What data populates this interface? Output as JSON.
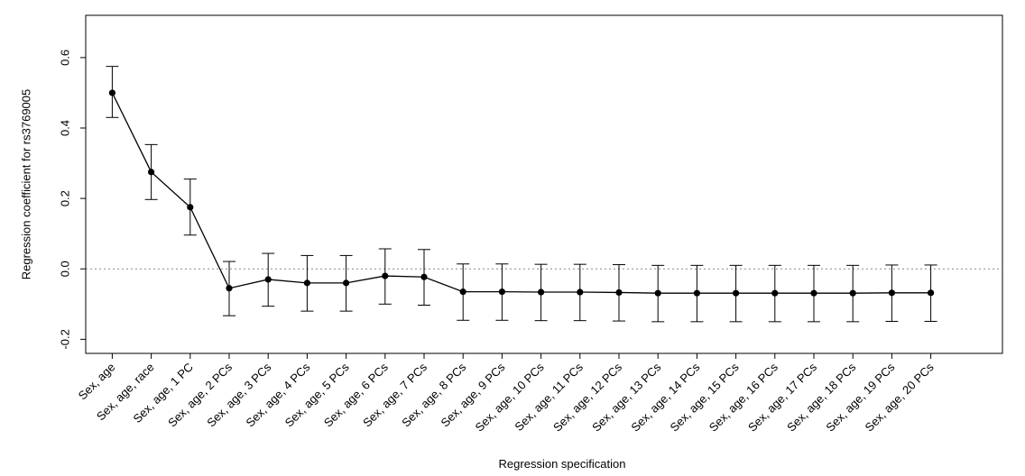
{
  "chart_data": {
    "type": "line",
    "title": "",
    "xlabel": "Regression specification",
    "ylabel": "Regression coefficient for rs3769005",
    "ylim": [
      -0.24,
      0.72
    ],
    "yticks": [
      -0.2,
      0.0,
      0.2,
      0.4,
      0.6
    ],
    "ytick_labels": [
      "-0.2",
      "0.0",
      "0.2",
      "0.4",
      "0.6"
    ],
    "reference_line": 0.0,
    "grid": false,
    "legend": "none",
    "colors": {
      "line": "#000000",
      "reference": "#888888"
    },
    "categories": [
      "Sex, age",
      "Sex, age, race",
      "Sex, age, 1 PC",
      "Sex, age, 2 PCs",
      "Sex, age, 3 PCs",
      "Sex, age, 4 PCs",
      "Sex, age, 5 PCs",
      "Sex, age, 6 PCs",
      "Sex, age, 7 PCs",
      "Sex, age, 8 PCs",
      "Sex, age, 9 PCs",
      "Sex, age, 10 PCs",
      "Sex, age, 11 PCs",
      "Sex, age, 12 PCs",
      "Sex, age, 13 PCs",
      "Sex, age, 14 PCs",
      "Sex, age, 15 PCs",
      "Sex, age, 16 PCs",
      "Sex, age, 17 PCs",
      "Sex, age, 18 PCs",
      "Sex, age, 19 PCs",
      "Sex, age, 20 PCs"
    ],
    "series": [
      {
        "values": [
          0.5,
          0.275,
          0.175,
          -0.055,
          -0.03,
          -0.04,
          -0.04,
          -0.02,
          -0.023,
          -0.065,
          -0.065,
          -0.066,
          -0.066,
          -0.067,
          -0.069,
          -0.069,
          -0.069,
          -0.069,
          -0.069,
          -0.069,
          -0.068,
          -0.068
        ],
        "lower": [
          0.43,
          0.197,
          0.096,
          -0.133,
          -0.106,
          -0.12,
          -0.12,
          -0.1,
          -0.103,
          -0.146,
          -0.146,
          -0.147,
          -0.147,
          -0.148,
          -0.15,
          -0.15,
          -0.15,
          -0.15,
          -0.15,
          -0.15,
          -0.149,
          -0.149
        ],
        "upper": [
          0.575,
          0.353,
          0.255,
          0.021,
          0.044,
          0.038,
          0.038,
          0.057,
          0.055,
          0.014,
          0.014,
          0.013,
          0.013,
          0.012,
          0.01,
          0.01,
          0.01,
          0.01,
          0.01,
          0.01,
          0.011,
          0.011
        ]
      }
    ]
  }
}
